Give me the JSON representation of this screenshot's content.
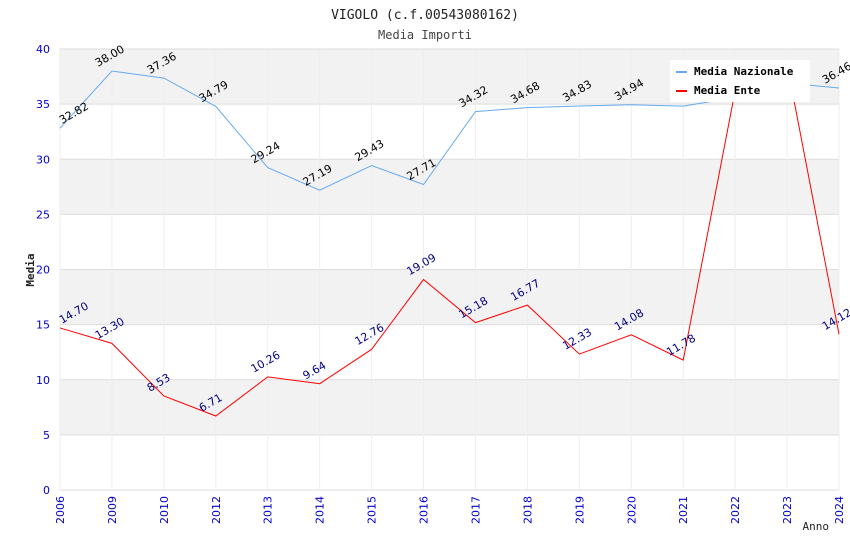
{
  "chart_data": {
    "type": "line",
    "title": "VIGOLO (c.f.00543080162)",
    "subtitle": "Media Importi",
    "xlabel": "Anno",
    "ylabel": "Media",
    "ylim": [
      0,
      40
    ],
    "yticks": [
      "0",
      "5",
      "10",
      "15",
      "20",
      "25",
      "30",
      "35",
      "40"
    ],
    "categories": [
      "2006",
      "2009",
      "2010",
      "2012",
      "2013",
      "2014",
      "2015",
      "2016",
      "2017",
      "2018",
      "2019",
      "2020",
      "2021",
      "2022",
      "2023",
      "2024"
    ],
    "legend_position": "top-right",
    "series": [
      {
        "name": "Media Nazionale",
        "color": "#66aaee",
        "label_color": "#000000",
        "values": [
          32.82,
          38.0,
          37.36,
          34.79,
          29.24,
          27.19,
          29.43,
          27.71,
          34.32,
          34.68,
          34.83,
          34.94,
          34.82,
          35.6,
          36.9,
          36.46
        ],
        "labels": [
          "32.82",
          "38.00",
          "37.36",
          "34.79",
          "29.24",
          "27.19",
          "29.43",
          "27.71",
          "34.32",
          "34.68",
          "34.83",
          "34.94",
          "",
          "",
          "",
          "36.46"
        ]
      },
      {
        "name": "Media Ente",
        "color": "#ff0000",
        "label_color": "#000080",
        "values": [
          14.7,
          13.3,
          8.53,
          6.71,
          10.26,
          9.64,
          12.76,
          19.09,
          15.18,
          16.77,
          12.33,
          14.08,
          11.78,
          36.2,
          38.6,
          14.12
        ],
        "labels": [
          "14.70",
          "13.30",
          "8.53",
          "6.71",
          "10.26",
          "9.64",
          "12.76",
          "19.09",
          "15.18",
          "16.77",
          "12.33",
          "14.08",
          "11.78",
          "",
          "",
          "14.12"
        ]
      }
    ]
  }
}
